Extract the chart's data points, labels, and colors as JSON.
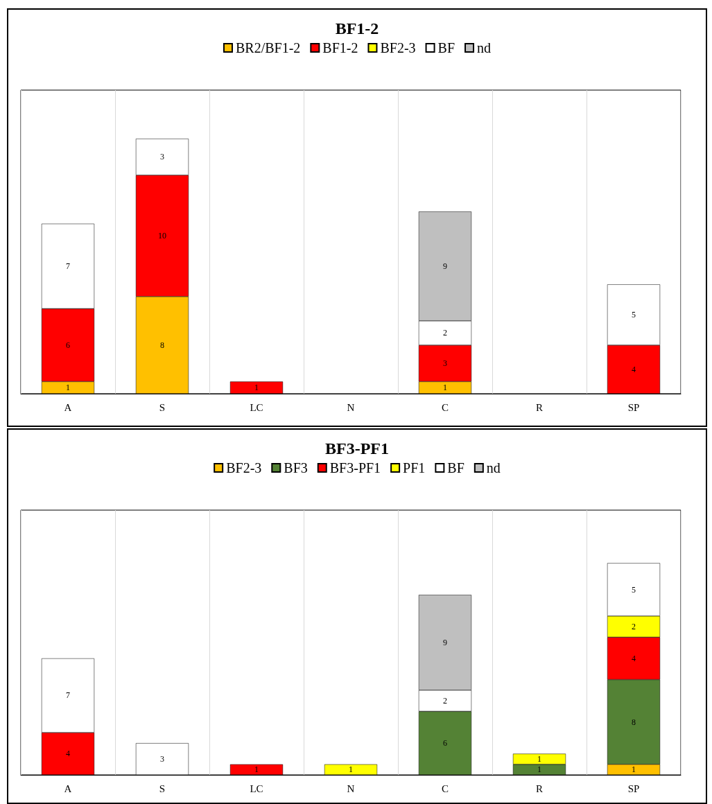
{
  "chart_data": [
    {
      "type": "bar",
      "title": "BF1-2",
      "stacked": true,
      "data_labels": true,
      "legend": "top",
      "grid": "x",
      "tick_labels": "x",
      "ylim": [
        0,
        25
      ],
      "categories": [
        "A",
        "S",
        "LC",
        "N",
        "C",
        "R",
        "SP"
      ],
      "series": [
        {
          "name": "BR2/BF1-2",
          "color": "#ffc000",
          "values": [
            1,
            8,
            null,
            null,
            1,
            null,
            null
          ]
        },
        {
          "name": "BF1-2",
          "color": "#ff0000",
          "values": [
            6,
            10,
            1,
            null,
            3,
            null,
            4
          ]
        },
        {
          "name": "BF2-3",
          "color": "#ffff00",
          "values": [
            null,
            null,
            null,
            null,
            null,
            null,
            null
          ]
        },
        {
          "name": "BF",
          "color": "#ffffff",
          "values": [
            7,
            3,
            null,
            null,
            2,
            null,
            5
          ]
        },
        {
          "name": "nd",
          "color": "#bfbfbf",
          "values": [
            null,
            null,
            null,
            null,
            9,
            null,
            null
          ]
        }
      ]
    },
    {
      "type": "bar",
      "title": "BF3-PF1",
      "stacked": true,
      "data_labels": true,
      "legend": "top",
      "grid": "x",
      "tick_labels": "x",
      "ylim": [
        0,
        25
      ],
      "categories": [
        "A",
        "S",
        "LC",
        "N",
        "C",
        "R",
        "SP"
      ],
      "series": [
        {
          "name": "BF2-3",
          "color": "#ffc000",
          "values": [
            null,
            null,
            null,
            null,
            null,
            null,
            1
          ]
        },
        {
          "name": "BF3",
          "color": "#548235",
          "values": [
            null,
            null,
            null,
            null,
            6,
            1,
            8
          ]
        },
        {
          "name": "BF3-PF1",
          "color": "#ff0000",
          "values": [
            4,
            null,
            1,
            null,
            null,
            null,
            4
          ]
        },
        {
          "name": "PF1",
          "color": "#ffff00",
          "values": [
            null,
            null,
            null,
            1,
            null,
            1,
            2
          ]
        },
        {
          "name": "BF",
          "color": "#ffffff",
          "values": [
            7,
            3,
            null,
            null,
            2,
            null,
            5
          ]
        },
        {
          "name": "nd",
          "color": "#bfbfbf",
          "values": [
            null,
            null,
            null,
            null,
            9,
            null,
            null
          ]
        }
      ]
    }
  ]
}
